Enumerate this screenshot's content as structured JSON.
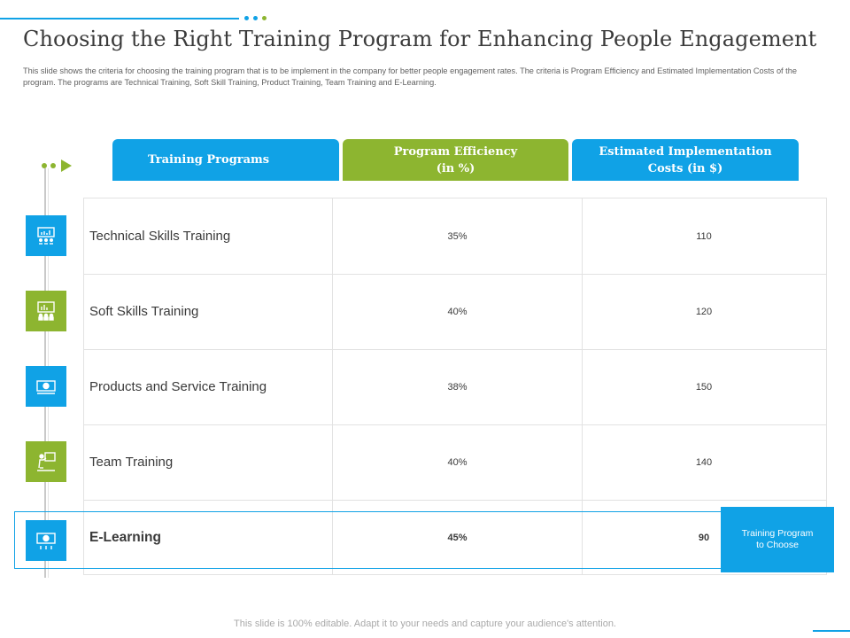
{
  "title": "Choosing the Right Training Program for Enhancing People Engagement",
  "description": "This slide shows the criteria for choosing the training program that is to be implement in the company for better people engagement rates. The criteria is Program Efficiency and Estimated Implementation  Costs of the program. The programs are Technical Training, Soft Skill Training, Product Training, Team Training and E-Learning.",
  "headers": {
    "programs": "Training Programs",
    "efficiency_line1": "Program Efficiency",
    "efficiency_line2": "(in %)",
    "costs_line1": "Estimated Implementation",
    "costs_line2": "Costs (in $)"
  },
  "rows": [
    {
      "program": "Technical Skills Training",
      "efficiency": "35%",
      "cost": "110",
      "icon": "presentation-chart-icon"
    },
    {
      "program": "Soft Skills Training",
      "efficiency": "40%",
      "cost": "120",
      "icon": "team-presentation-icon"
    },
    {
      "program": "Products and Service Training",
      "efficiency": "38%",
      "cost": "150",
      "icon": "money-board-icon"
    },
    {
      "program": "Team Training",
      "efficiency": "40%",
      "cost": "140",
      "icon": "trainer-board-icon"
    },
    {
      "program": "E-Learning",
      "efficiency": "45%",
      "cost": "90",
      "icon": "money-board-icon"
    }
  ],
  "badge": {
    "line1": "Training Program",
    "line2": "to Choose"
  },
  "footer": "This slide is 100% editable. Adapt it to your needs and capture your audience's attention.",
  "colors": {
    "accent_blue": "#10a2e6",
    "accent_green": "#8db530"
  }
}
